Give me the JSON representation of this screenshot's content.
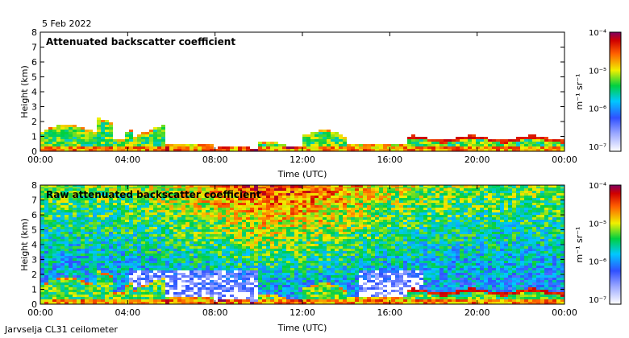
{
  "date": "5 Feb 2022",
  "footer": "Jarvselja CL31 ceilometer",
  "colors": {
    "background": "#ffffff",
    "axis": "#000000",
    "noise": "#ffffff"
  },
  "chart_data": [
    {
      "type": "heatmap",
      "title": "Attenuated backscatter coefficient",
      "xlabel": "Time (UTC)",
      "ylabel": "Height (km)",
      "xticks": [
        "00:00",
        "04:00",
        "08:00",
        "12:00",
        "16:00",
        "20:00",
        "00:00"
      ],
      "xlim_hours": [
        0,
        24
      ],
      "yticks": [
        "0",
        "1",
        "2",
        "3",
        "4",
        "5",
        "6",
        "7",
        "8"
      ],
      "ylim_km": [
        0,
        8
      ],
      "colorbar": {
        "label": "m⁻¹ sr⁻¹",
        "ticks": [
          "10⁻⁴",
          "10⁻⁵",
          "10⁻⁶",
          "10⁻⁷"
        ],
        "range_log10": [
          -7,
          -4
        ]
      },
      "features": {
        "max_signal_height_km": 2.5,
        "cloud_base_after_17h_km": 0.9
      }
    },
    {
      "type": "heatmap",
      "title": "Raw attenuated backscatter coefficient",
      "xlabel": "Time (UTC)",
      "ylabel": "Height (km)",
      "xticks": [
        "00:00",
        "04:00",
        "08:00",
        "12:00",
        "16:00",
        "20:00",
        "00:00"
      ],
      "xlim_hours": [
        0,
        24
      ],
      "yticks": [
        "0",
        "1",
        "2",
        "3",
        "4",
        "5",
        "6",
        "7",
        "8"
      ],
      "ylim_km": [
        0,
        8
      ],
      "colorbar": {
        "label": "m⁻¹ sr⁻¹",
        "ticks": [
          "10⁻⁴",
          "10⁻⁵",
          "10⁻⁶",
          "10⁻⁷"
        ],
        "range_log10": [
          -7,
          -4
        ]
      },
      "features": {
        "noise_peak_hour": 11,
        "noise_peak_height_km": 8
      }
    }
  ]
}
